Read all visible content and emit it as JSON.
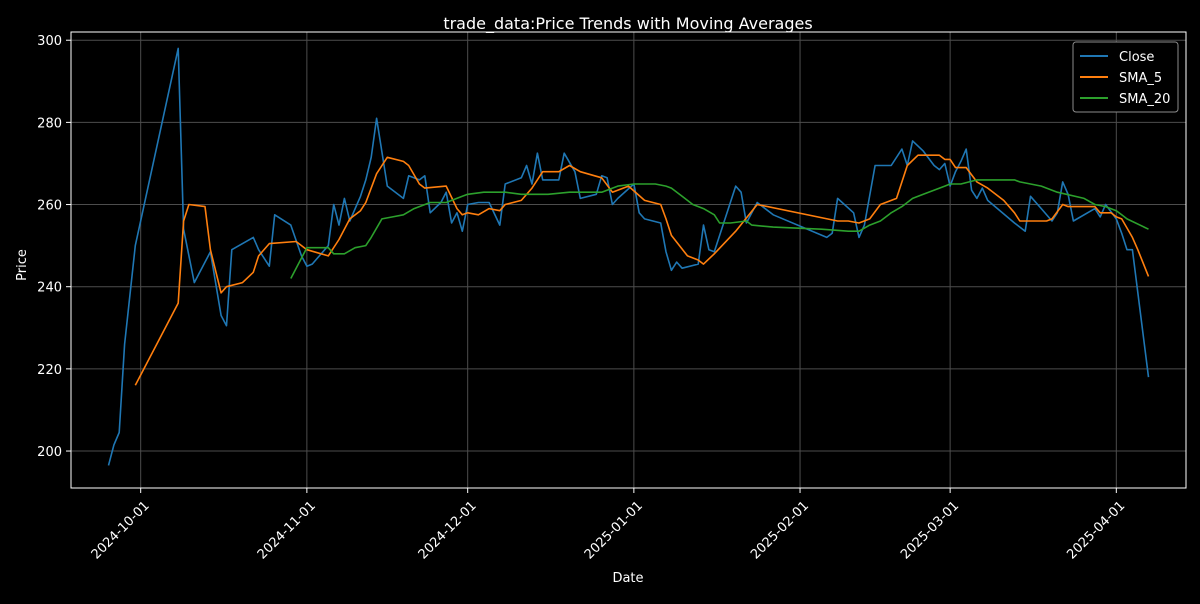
{
  "chart_data": {
    "type": "line",
    "title": "trade_data:Price Trends with Moving Averages",
    "xlabel": "Date",
    "ylabel": "Price",
    "x_ticks": [
      "2024-10-01",
      "2024-11-01",
      "2024-12-01",
      "2025-01-01",
      "2025-02-01",
      "2025-03-01",
      "2025-04-01"
    ],
    "y_ticks": [
      200,
      220,
      240,
      260,
      280,
      300
    ],
    "xlim": [
      "2024-09-18",
      "2025-04-14"
    ],
    "ylim": [
      191,
      302
    ],
    "grid": true,
    "legend_position": "upper right",
    "series": [
      {
        "name": "Close",
        "color": "#1f77b4",
        "points": [
          [
            "2024-09-25",
            196.5
          ],
          [
            "2024-09-26",
            201.5
          ],
          [
            "2024-09-27",
            204.5
          ],
          [
            "2024-09-28",
            226
          ],
          [
            "2024-09-30",
            250
          ],
          [
            "2024-10-08",
            298
          ],
          [
            "2024-10-09",
            254
          ],
          [
            "2024-10-11",
            241
          ],
          [
            "2024-10-14",
            248.5
          ],
          [
            "2024-10-16",
            233
          ],
          [
            "2024-10-17",
            230.5
          ],
          [
            "2024-10-18",
            249
          ],
          [
            "2024-10-22",
            252
          ],
          [
            "2024-10-23",
            249
          ],
          [
            "2024-10-25",
            245
          ],
          [
            "2024-10-26",
            257.5
          ],
          [
            "2024-10-29",
            255
          ],
          [
            "2024-10-31",
            247.5
          ],
          [
            "2024-11-01",
            245
          ],
          [
            "2024-11-02",
            245.5
          ],
          [
            "2024-11-04",
            248.5
          ],
          [
            "2024-11-05",
            250
          ],
          [
            "2024-11-06",
            260
          ],
          [
            "2024-11-07",
            255
          ],
          [
            "2024-11-08",
            261.5
          ],
          [
            "2024-11-09",
            256
          ],
          [
            "2024-11-11",
            262
          ],
          [
            "2024-11-12",
            266
          ],
          [
            "2024-11-13",
            271.5
          ],
          [
            "2024-11-14",
            281
          ],
          [
            "2024-11-16",
            264.5
          ],
          [
            "2024-11-19",
            261.5
          ],
          [
            "2024-11-20",
            267
          ],
          [
            "2024-11-22",
            266
          ],
          [
            "2024-11-23",
            267
          ],
          [
            "2024-11-24",
            258
          ],
          [
            "2024-11-26",
            260.5
          ],
          [
            "2024-11-27",
            263
          ],
          [
            "2024-11-28",
            255.5
          ],
          [
            "2024-11-29",
            258
          ],
          [
            "2024-11-30",
            253.5
          ],
          [
            "2024-12-01",
            260
          ],
          [
            "2024-12-03",
            260.5
          ],
          [
            "2024-12-05",
            260.5
          ],
          [
            "2024-12-07",
            255
          ],
          [
            "2024-12-08",
            265
          ],
          [
            "2024-12-11",
            266.5
          ],
          [
            "2024-12-12",
            269.5
          ],
          [
            "2024-12-13",
            265
          ],
          [
            "2024-12-14",
            272.5
          ],
          [
            "2024-12-15",
            266
          ],
          [
            "2024-12-18",
            266
          ],
          [
            "2024-12-19",
            272.5
          ],
          [
            "2024-12-21",
            268
          ],
          [
            "2024-12-22",
            261.5
          ],
          [
            "2024-12-25",
            262.5
          ],
          [
            "2024-12-26",
            267
          ],
          [
            "2024-12-27",
            266.5
          ],
          [
            "2024-12-28",
            260
          ],
          [
            "2024-12-29",
            261.5
          ],
          [
            "2025-01-01",
            265
          ],
          [
            "2025-01-02",
            258
          ],
          [
            "2025-01-03",
            256.5
          ],
          [
            "2025-01-06",
            255.5
          ],
          [
            "2025-01-07",
            248.5
          ],
          [
            "2025-01-08",
            244
          ],
          [
            "2025-01-09",
            246
          ],
          [
            "2025-01-10",
            244.5
          ],
          [
            "2025-01-13",
            245.5
          ],
          [
            "2025-01-14",
            255
          ],
          [
            "2025-01-15",
            249
          ],
          [
            "2025-01-16",
            248.5
          ],
          [
            "2025-01-20",
            264.5
          ],
          [
            "2025-01-21",
            263
          ],
          [
            "2025-01-22",
            255.5
          ],
          [
            "2025-01-24",
            260.5
          ],
          [
            "2025-01-27",
            257.5
          ],
          [
            "2025-02-06",
            252
          ],
          [
            "2025-02-07",
            253
          ],
          [
            "2025-02-08",
            261.5
          ],
          [
            "2025-02-11",
            258
          ],
          [
            "2025-02-12",
            252
          ],
          [
            "2025-02-13",
            255
          ],
          [
            "2025-02-15",
            269.5
          ],
          [
            "2025-02-18",
            269.5
          ],
          [
            "2025-02-20",
            273.5
          ],
          [
            "2025-02-21",
            269.5
          ],
          [
            "2025-02-22",
            275.5
          ],
          [
            "2025-02-24",
            273
          ],
          [
            "2025-02-26",
            269.5
          ],
          [
            "2025-02-27",
            268.5
          ],
          [
            "2025-02-28",
            270
          ],
          [
            "2025-03-01",
            264.5
          ],
          [
            "2025-03-02",
            268
          ],
          [
            "2025-03-03",
            270.5
          ],
          [
            "2025-03-04",
            273.5
          ],
          [
            "2025-03-05",
            263.5
          ],
          [
            "2025-03-06",
            261.5
          ],
          [
            "2025-03-07",
            264
          ],
          [
            "2025-03-08",
            261
          ],
          [
            "2025-03-13",
            255.5
          ],
          [
            "2025-03-15",
            253.5
          ],
          [
            "2025-03-16",
            262
          ],
          [
            "2025-03-18",
            259
          ],
          [
            "2025-03-20",
            256
          ],
          [
            "2025-03-21",
            258
          ],
          [
            "2025-03-22",
            265.5
          ],
          [
            "2025-03-23",
            262.5
          ],
          [
            "2025-03-24",
            256
          ],
          [
            "2025-03-28",
            259
          ],
          [
            "2025-03-29",
            257
          ],
          [
            "2025-03-30",
            260
          ],
          [
            "2025-04-01",
            256.5
          ],
          [
            "2025-04-02",
            253
          ],
          [
            "2025-04-03",
            249
          ],
          [
            "2025-04-04",
            249
          ],
          [
            "2025-04-07",
            218
          ]
        ]
      },
      {
        "name": "SMA_5",
        "color": "#ff7f0e",
        "points": [
          [
            "2024-09-30",
            216
          ],
          [
            "2024-10-08",
            236
          ],
          [
            "2024-10-09",
            256
          ],
          [
            "2024-10-10",
            260
          ],
          [
            "2024-10-13",
            259.5
          ],
          [
            "2024-10-14",
            249
          ],
          [
            "2024-10-16",
            238.5
          ],
          [
            "2024-10-17",
            240
          ],
          [
            "2024-10-20",
            241
          ],
          [
            "2024-10-22",
            243.5
          ],
          [
            "2024-10-23",
            247.5
          ],
          [
            "2024-10-25",
            250.5
          ],
          [
            "2024-10-30",
            251
          ],
          [
            "2024-11-01",
            249
          ],
          [
            "2024-11-05",
            247.5
          ],
          [
            "2024-11-07",
            251.5
          ],
          [
            "2024-11-09",
            256.5
          ],
          [
            "2024-11-11",
            258.5
          ],
          [
            "2024-11-12",
            260.5
          ],
          [
            "2024-11-14",
            267.5
          ],
          [
            "2024-11-16",
            271.5
          ],
          [
            "2024-11-19",
            270.5
          ],
          [
            "2024-11-20",
            269.5
          ],
          [
            "2024-11-22",
            265
          ],
          [
            "2024-11-23",
            264
          ],
          [
            "2024-11-27",
            264.5
          ],
          [
            "2024-11-29",
            259
          ],
          [
            "2024-11-30",
            257.5
          ],
          [
            "2024-12-01",
            258
          ],
          [
            "2024-12-03",
            257.5
          ],
          [
            "2024-12-05",
            259
          ],
          [
            "2024-12-07",
            258.5
          ],
          [
            "2024-12-08",
            260
          ],
          [
            "2024-12-11",
            261
          ],
          [
            "2024-12-13",
            264
          ],
          [
            "2024-12-15",
            268
          ],
          [
            "2024-12-18",
            268
          ],
          [
            "2024-12-20",
            269.5
          ],
          [
            "2024-12-22",
            268
          ],
          [
            "2024-12-26",
            266.5
          ],
          [
            "2024-12-28",
            263
          ],
          [
            "2024-12-31",
            264.5
          ],
          [
            "2025-01-03",
            261
          ],
          [
            "2025-01-06",
            260
          ],
          [
            "2025-01-07",
            256.5
          ],
          [
            "2025-01-08",
            252.5
          ],
          [
            "2025-01-11",
            247.5
          ],
          [
            "2025-01-13",
            246.5
          ],
          [
            "2025-01-14",
            245.5
          ],
          [
            "2025-01-16",
            248
          ],
          [
            "2025-01-20",
            253.5
          ],
          [
            "2025-01-24",
            260
          ],
          [
            "2025-02-08",
            256
          ],
          [
            "2025-02-10",
            256
          ],
          [
            "2025-02-12",
            255.5
          ],
          [
            "2025-02-14",
            256.5
          ],
          [
            "2025-02-16",
            260
          ],
          [
            "2025-02-19",
            261.5
          ],
          [
            "2025-02-21",
            269.5
          ],
          [
            "2025-02-23",
            272
          ],
          [
            "2025-02-27",
            272
          ],
          [
            "2025-02-28",
            271
          ],
          [
            "2025-03-01",
            271
          ],
          [
            "2025-03-02",
            269
          ],
          [
            "2025-03-04",
            269
          ],
          [
            "2025-03-06",
            265.5
          ],
          [
            "2025-03-08",
            264
          ],
          [
            "2025-03-11",
            261
          ],
          [
            "2025-03-13",
            258
          ],
          [
            "2025-03-14",
            256
          ],
          [
            "2025-03-19",
            256
          ],
          [
            "2025-03-20",
            256.5
          ],
          [
            "2025-03-22",
            260
          ],
          [
            "2025-03-23",
            259.5
          ],
          [
            "2025-03-25",
            259.5
          ],
          [
            "2025-03-28",
            259.5
          ],
          [
            "2025-03-29",
            258
          ],
          [
            "2025-03-31",
            258
          ],
          [
            "2025-04-01",
            257
          ],
          [
            "2025-04-02",
            256.5
          ],
          [
            "2025-04-04",
            252
          ],
          [
            "2025-04-05",
            249
          ],
          [
            "2025-04-07",
            242.5
          ]
        ]
      },
      {
        "name": "SMA_20",
        "color": "#2ca02c",
        "points": [
          [
            "2024-10-29",
            242
          ],
          [
            "2024-11-01",
            249.5
          ],
          [
            "2024-11-05",
            249.5
          ],
          [
            "2024-11-06",
            248
          ],
          [
            "2024-11-08",
            248
          ],
          [
            "2024-11-10",
            249.5
          ],
          [
            "2024-11-12",
            250
          ],
          [
            "2024-11-13",
            252
          ],
          [
            "2024-11-15",
            256.5
          ],
          [
            "2024-11-17",
            257
          ],
          [
            "2024-11-19",
            257.5
          ],
          [
            "2024-11-21",
            259
          ],
          [
            "2024-11-24",
            260.5
          ],
          [
            "2024-11-27",
            260.5
          ],
          [
            "2024-11-30",
            262
          ],
          [
            "2024-12-01",
            262.5
          ],
          [
            "2024-12-04",
            263
          ],
          [
            "2024-12-08",
            263
          ],
          [
            "2024-12-11",
            262.5
          ],
          [
            "2024-12-13",
            262.5
          ],
          [
            "2024-12-16",
            262.5
          ],
          [
            "2024-12-20",
            263
          ],
          [
            "2024-12-26",
            263
          ],
          [
            "2024-12-29",
            264.5
          ],
          [
            "2025-01-01",
            265
          ],
          [
            "2025-01-05",
            265
          ],
          [
            "2025-01-07",
            264.5
          ],
          [
            "2025-01-08",
            264
          ],
          [
            "2025-01-10",
            262
          ],
          [
            "2025-01-12",
            260
          ],
          [
            "2025-01-14",
            259
          ],
          [
            "2025-01-16",
            257.5
          ],
          [
            "2025-01-17",
            255.5
          ],
          [
            "2025-01-19",
            255.5
          ],
          [
            "2025-01-22",
            256
          ],
          [
            "2025-01-23",
            255
          ],
          [
            "2025-01-27",
            254.5
          ],
          [
            "2025-02-05",
            254
          ],
          [
            "2025-02-10",
            253.5
          ],
          [
            "2025-02-12",
            253.5
          ],
          [
            "2025-02-14",
            255
          ],
          [
            "2025-02-16",
            256
          ],
          [
            "2025-02-18",
            258
          ],
          [
            "2025-02-20",
            259.5
          ],
          [
            "2025-02-22",
            261.5
          ],
          [
            "2025-02-24",
            262.5
          ],
          [
            "2025-02-28",
            264.5
          ],
          [
            "2025-03-01",
            265
          ],
          [
            "2025-03-03",
            265
          ],
          [
            "2025-03-06",
            266
          ],
          [
            "2025-03-10",
            266
          ],
          [
            "2025-03-13",
            266
          ],
          [
            "2025-03-14",
            265.5
          ],
          [
            "2025-03-18",
            264.5
          ],
          [
            "2025-03-21",
            263
          ],
          [
            "2025-03-26",
            261.5
          ],
          [
            "2025-03-28",
            260
          ],
          [
            "2025-03-30",
            259.5
          ],
          [
            "2025-04-01",
            258.5
          ],
          [
            "2025-04-02",
            257.5
          ],
          [
            "2025-04-03",
            256.5
          ],
          [
            "2025-04-07",
            254
          ]
        ]
      }
    ]
  }
}
